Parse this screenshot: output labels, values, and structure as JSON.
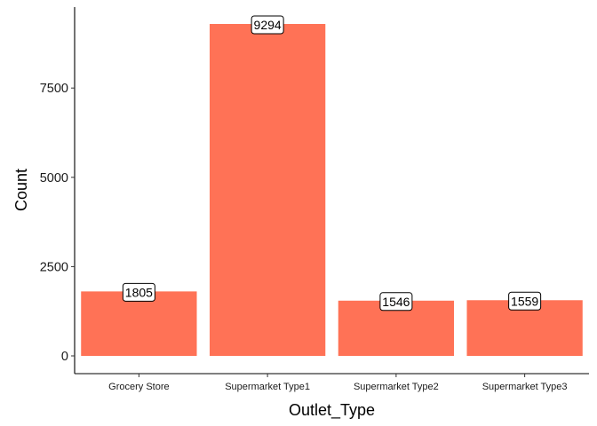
{
  "chart_data": {
    "type": "bar",
    "categories": [
      "Grocery Store",
      "Supermarket Type1",
      "Supermarket Type2",
      "Supermarket Type3"
    ],
    "values": [
      1805,
      9294,
      1546,
      1559
    ],
    "data_labels": [
      "1805",
      "9294",
      "1546",
      "1559"
    ],
    "title": "",
    "xlabel": "Outlet_Type",
    "ylabel": "Count",
    "ylim": [
      0,
      9294
    ],
    "yticks": [
      0,
      2500,
      5000,
      7500
    ],
    "bar_color": "#FF7256",
    "grid": false,
    "legend": "none"
  }
}
